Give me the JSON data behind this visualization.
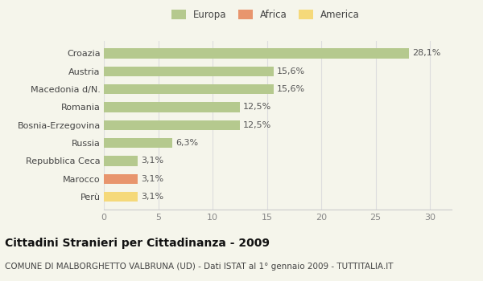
{
  "categories": [
    "Perù",
    "Marocco",
    "Repubblica Ceca",
    "Russia",
    "Bosnia-Erzegovina",
    "Romania",
    "Macedonia d/N.",
    "Austria",
    "Croazia"
  ],
  "values": [
    3.1,
    3.1,
    3.1,
    6.3,
    12.5,
    12.5,
    15.6,
    15.6,
    28.1
  ],
  "labels": [
    "3,1%",
    "3,1%",
    "3,1%",
    "6,3%",
    "12,5%",
    "12,5%",
    "15,6%",
    "15,6%",
    "28,1%"
  ],
  "colors": [
    "#f5d97a",
    "#e8956d",
    "#b5c98e",
    "#b5c98e",
    "#b5c98e",
    "#b5c98e",
    "#b5c98e",
    "#b5c98e",
    "#b5c98e"
  ],
  "legend_labels": [
    "Europa",
    "Africa",
    "America"
  ],
  "legend_colors": [
    "#b5c98e",
    "#e8956d",
    "#f5d97a"
  ],
  "title": "Cittadini Stranieri per Cittadinanza - 2009",
  "subtitle": "COMUNE DI MALBORGHETTO VALBRUNA (UD) - Dati ISTAT al 1° gennaio 2009 - TUTTITALIA.IT",
  "xlim": [
    0,
    32
  ],
  "xticks": [
    0,
    5,
    10,
    15,
    20,
    25,
    30
  ],
  "background_color": "#f5f5eb",
  "bar_height": 0.55,
  "title_fontsize": 10,
  "subtitle_fontsize": 7.5,
  "label_fontsize": 8,
  "ytick_fontsize": 8,
  "xtick_fontsize": 8
}
